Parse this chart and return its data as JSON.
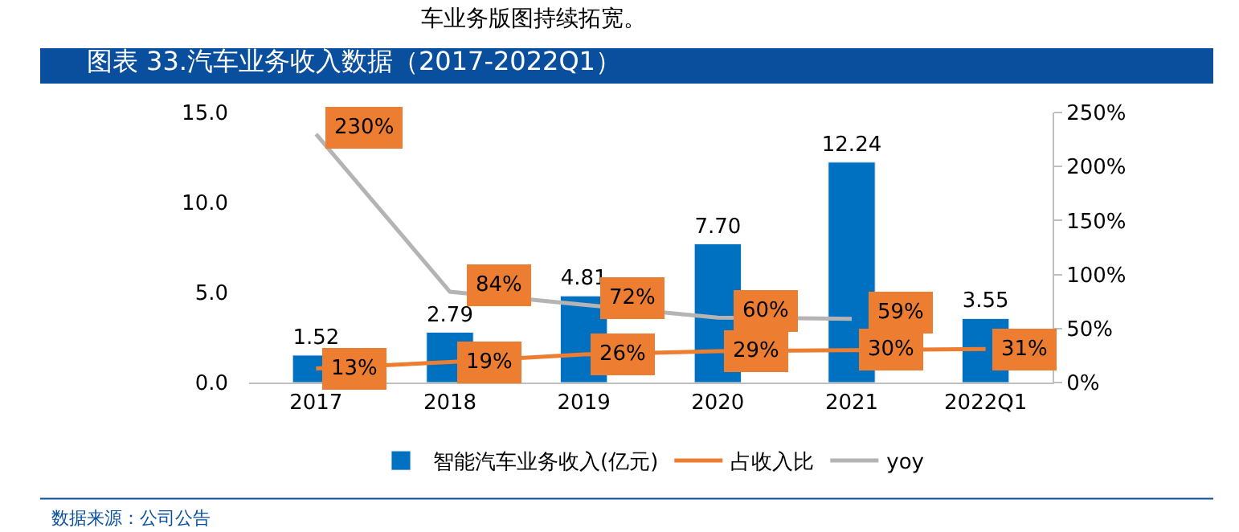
{
  "chart_data": {
    "type": "bar",
    "title": "图表 33.汽车业务收入数据（2017-2022Q1）",
    "annotations": [
      "车业务版图持续拓宽。",
      "数据来源：公司公告"
    ],
    "categories": [
      "2017",
      "2018",
      "2019",
      "2020",
      "2021",
      "2022Q1"
    ],
    "series": [
      {
        "name": "智能汽车业务收入(亿元)",
        "color": "#0070c0",
        "values": [
          1.52,
          2.79,
          4.81,
          7.7,
          12.24,
          3.55
        ],
        "value_labels": [
          "1.52",
          "2.79",
          "4.81",
          "7.70",
          "12.24",
          "3.55"
        ]
      },
      {
        "name": "占收入比",
        "type": "line",
        "axis": "y2",
        "color": "#ed7d31",
        "values": [
          13,
          19,
          26,
          29,
          30,
          31
        ],
        "value_labels": [
          "13%",
          "19%",
          "26%",
          "29%",
          "30%",
          "31%"
        ]
      },
      {
        "name": "yoy",
        "type": "line",
        "axis": "y2",
        "color": "#b4b4b4",
        "values": [
          230,
          84,
          72,
          60,
          59,
          null
        ],
        "value_labels": [
          "230%",
          "84%",
          "72%",
          "60%",
          "59%",
          null
        ]
      }
    ],
    "ylim": [
      0,
      15
    ],
    "yticks": [
      {
        "value": 0,
        "label": "0.0"
      },
      {
        "value": 5,
        "label": "5.0"
      },
      {
        "value": 10,
        "label": "10.0"
      },
      {
        "value": 15,
        "label": "15.0"
      }
    ],
    "y2lim": [
      0,
      250
    ],
    "y2ticks": [
      {
        "value": 0,
        "label": "0%"
      },
      {
        "value": 50,
        "label": "50%"
      },
      {
        "value": 100,
        "label": "100%"
      },
      {
        "value": 150,
        "label": "150%"
      },
      {
        "value": 200,
        "label": "200%"
      },
      {
        "value": 250,
        "label": "250%"
      }
    ],
    "legend": "bottom",
    "marker": "none",
    "line_style": "solid"
  }
}
